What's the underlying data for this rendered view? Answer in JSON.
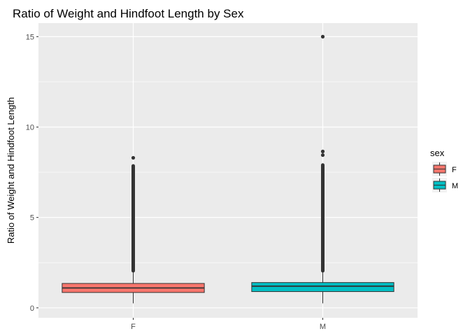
{
  "chart_data": {
    "type": "box",
    "title": "Ratio of Weight and Hindfoot Length by Sex",
    "xlabel": "",
    "ylabel": "Ratio of Weight and Hindfoot Length",
    "categories": [
      "F",
      "M"
    ],
    "ylim": [
      -0.55,
      15.75
    ],
    "yticks": [
      0,
      5,
      10,
      15
    ],
    "grid": true,
    "legend": {
      "title": "sex",
      "placement": "right",
      "entries": [
        {
          "label": "F",
          "color": "#F8766D"
        },
        {
          "label": "M",
          "color": "#00BFC4"
        }
      ]
    },
    "series": [
      {
        "name": "F",
        "color": "#F8766D",
        "min": 0.25,
        "q1": 0.85,
        "median": 1.1,
        "q3": 1.35,
        "whisker_high": 2.05,
        "outlier_band": [
          2.05,
          7.85
        ],
        "outliers": [
          8.3
        ]
      },
      {
        "name": "M",
        "color": "#00BFC4",
        "min": 0.25,
        "q1": 0.9,
        "median": 1.2,
        "q3": 1.4,
        "whisker_high": 2.05,
        "outlier_band": [
          2.05,
          7.9
        ],
        "outliers": [
          8.45,
          8.65,
          15.0
        ]
      }
    ]
  }
}
